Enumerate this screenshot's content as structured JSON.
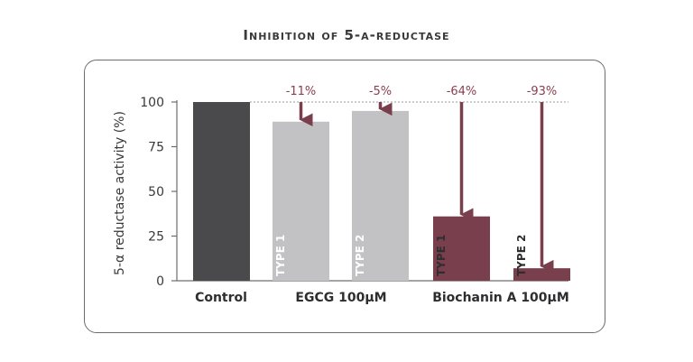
{
  "title": "Inhibition of 5-α-reductase",
  "chart_data": {
    "type": "bar",
    "ylabel": "5-α reductase activity (%)",
    "ylim": [
      0,
      100
    ],
    "yticks": [
      0,
      25,
      50,
      75,
      100
    ],
    "groups": [
      "Control",
      "EGCG 100µM",
      "Biochanin A 100µM"
    ],
    "bars": [
      {
        "group": "Control",
        "type_label": "",
        "value": 100,
        "change_label": "",
        "color": "#4a4a4c"
      },
      {
        "group": "EGCG 100µM",
        "type_label": "TYPE 1",
        "value": 89,
        "change_label": "-11%",
        "color": "#c2c2c4"
      },
      {
        "group": "EGCG 100µM",
        "type_label": "TYPE 2",
        "value": 95,
        "change_label": "-5%",
        "color": "#c2c2c4"
      },
      {
        "group": "Biochanin A 100µM",
        "type_label": "TYPE 1",
        "value": 36,
        "change_label": "-64%",
        "color": "#7a3f4c"
      },
      {
        "group": "Biochanin A 100µM",
        "type_label": "TYPE 2",
        "value": 7,
        "change_label": "-93%",
        "color": "#7a3f4c"
      }
    ],
    "reference_line": 100,
    "arrow_color": "#7a3f4c"
  }
}
